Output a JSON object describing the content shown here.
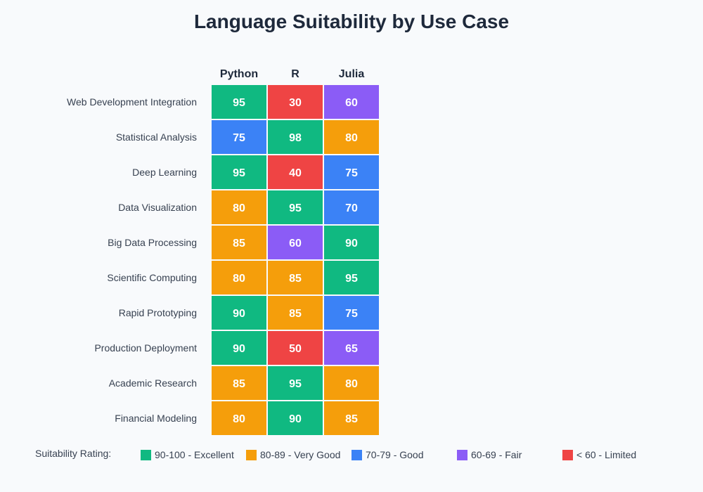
{
  "chart_data": {
    "type": "heatmap",
    "title": "Language Suitability by Use Case",
    "columns": [
      "Python",
      "R",
      "Julia"
    ],
    "rows": [
      "Web Development Integration",
      "Statistical Analysis",
      "Deep Learning",
      "Data Visualization",
      "Big Data Processing",
      "Scientific Computing",
      "Rapid Prototyping",
      "Production Deployment",
      "Academic Research",
      "Financial Modeling"
    ],
    "values": [
      [
        95,
        30,
        60
      ],
      [
        75,
        98,
        80
      ],
      [
        95,
        40,
        75
      ],
      [
        80,
        95,
        70
      ],
      [
        85,
        60,
        90
      ],
      [
        80,
        85,
        95
      ],
      [
        90,
        85,
        75
      ],
      [
        90,
        50,
        65
      ],
      [
        85,
        95,
        80
      ],
      [
        80,
        90,
        85
      ]
    ],
    "legend": {
      "title": "Suitability Rating:",
      "placement": "bottom",
      "items": [
        {
          "label": "90-100 - Excellent",
          "min": 90,
          "color": "#10b981"
        },
        {
          "label": "80-89 - Very Good",
          "min": 80,
          "color": "#f59e0b"
        },
        {
          "label": "70-79 - Good",
          "min": 70,
          "color": "#3b82f6"
        },
        {
          "label": "60-69 - Fair",
          "min": 60,
          "color": "#8b5cf6"
        },
        {
          "label": "< 60 - Limited",
          "min": 0,
          "color": "#ef4444"
        }
      ]
    }
  }
}
